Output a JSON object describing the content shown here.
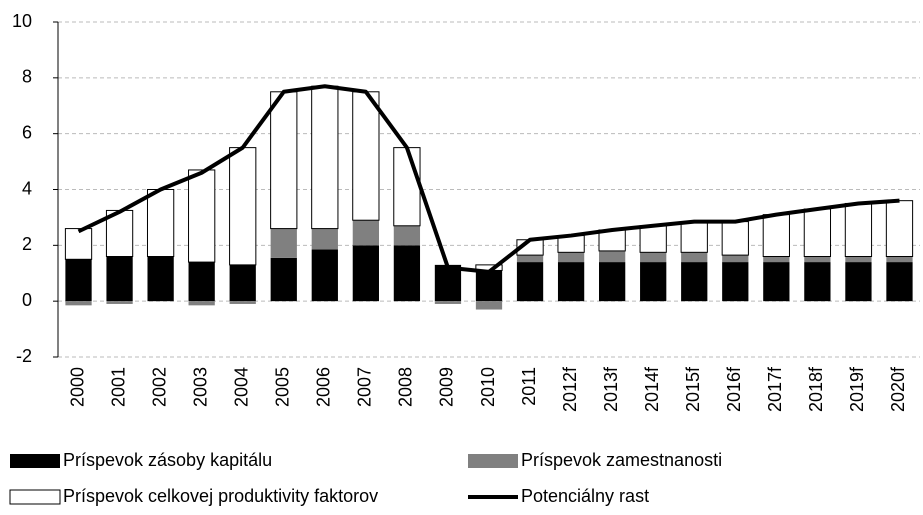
{
  "chart_data": {
    "type": "stacked_bar_line",
    "categories": [
      "2000",
      "2001",
      "2002",
      "2003",
      "2004",
      "2005",
      "2006",
      "2007",
      "2008",
      "2009",
      "2010",
      "2011",
      "2012f",
      "2013f",
      "2014f",
      "2015f",
      "2016f",
      "2017f",
      "2018f",
      "2019f",
      "2020f"
    ],
    "series": [
      {
        "name": "Príspevok zásoby kapitálu",
        "color": "#000000",
        "kind": "bar",
        "values": [
          1.5,
          1.6,
          1.6,
          1.4,
          1.3,
          1.55,
          1.85,
          2.0,
          2.0,
          1.3,
          1.1,
          1.4,
          1.4,
          1.4,
          1.4,
          1.4,
          1.4,
          1.4,
          1.4,
          1.4,
          1.4
        ]
      },
      {
        "name": "Príspevok zamestnanosti",
        "color": "#808080",
        "kind": "bar",
        "values": [
          -0.15,
          -0.1,
          0,
          -0.15,
          -0.1,
          1.05,
          0.75,
          0.9,
          0.7,
          -0.1,
          -0.3,
          0.25,
          0.35,
          0.4,
          0.35,
          0.35,
          0.25,
          0.2,
          0.2,
          0.2,
          0.2
        ]
      },
      {
        "name": "Príspevok celkovej produktivity faktorov",
        "color": "#ffffff",
        "kind": "bar",
        "values": [
          1.1,
          1.65,
          2.4,
          3.3,
          4.2,
          4.9,
          5.1,
          4.6,
          2.8,
          0,
          0.2,
          0.55,
          0.6,
          0.75,
          0.95,
          1.1,
          1.2,
          1.5,
          1.7,
          1.9,
          2.0
        ]
      },
      {
        "name": "Potenciálny rast",
        "color": "#000000",
        "kind": "line",
        "values": [
          2.5,
          3.2,
          4.0,
          4.6,
          5.5,
          7.5,
          7.7,
          7.5,
          5.5,
          1.2,
          1.05,
          2.2,
          2.35,
          2.55,
          2.7,
          2.85,
          2.85,
          3.1,
          3.3,
          3.5,
          3.6
        ]
      }
    ],
    "ylim": [
      -2,
      10
    ],
    "yticks": [
      -2,
      0,
      2,
      4,
      6,
      8,
      10
    ],
    "grid": true,
    "legend": "bottom"
  }
}
